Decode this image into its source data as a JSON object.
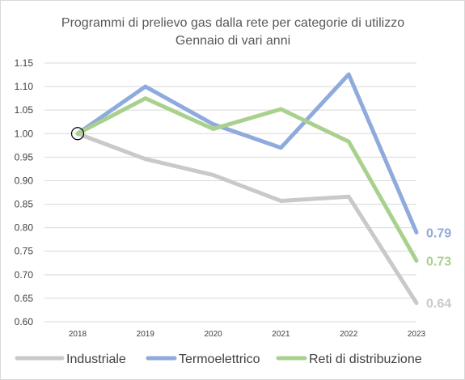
{
  "chart_data": {
    "type": "line",
    "title": "Programmi di prelievo gas dalla rete per categorie di utilizzo",
    "subtitle": "Gennaio di vari anni",
    "xlabel": "",
    "ylabel": "",
    "x": [
      "2018",
      "2019",
      "2020",
      "2021",
      "2022",
      "2023"
    ],
    "ylim": [
      0.6,
      1.15
    ],
    "ytick_step": 0.05,
    "yticks": [
      "0.60",
      "0.65",
      "0.70",
      "0.75",
      "0.80",
      "0.85",
      "0.90",
      "0.95",
      "1.00",
      "1.05",
      "1.10",
      "1.15"
    ],
    "grid": "horizontal",
    "legend_position": "bottom",
    "series": [
      {
        "name": "Industriale",
        "color": "#c9c9c9",
        "values": [
          1.0,
          0.946,
          0.912,
          0.857,
          0.866,
          0.64
        ],
        "end_label": "0.64"
      },
      {
        "name": "Termoelettrico",
        "color": "#8faadc",
        "values": [
          1.0,
          1.1,
          1.02,
          0.97,
          1.126,
          0.79
        ],
        "end_label": "0.79"
      },
      {
        "name": "Reti di distribuzione",
        "color": "#a9d18e",
        "values": [
          1.0,
          1.075,
          1.01,
          1.052,
          0.983,
          0.73
        ],
        "end_label": "0.73"
      }
    ],
    "annotation": {
      "type": "circle-marker",
      "x": "2018",
      "y": 1.0
    }
  }
}
